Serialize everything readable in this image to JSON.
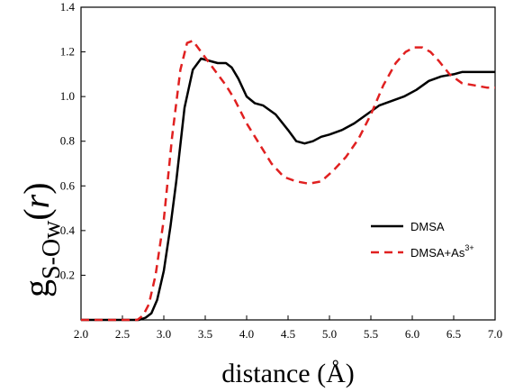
{
  "chart_data": {
    "type": "line",
    "xlabel": "distance (Å)",
    "ylabel": {
      "base": "g",
      "subscript": "S-Ow",
      "paren_open": "(",
      "arg": "r",
      "paren_close": ")"
    },
    "xlim": [
      2.0,
      7.0
    ],
    "ylim": [
      0.0,
      1.4
    ],
    "xticks": [
      "2.0",
      "2.5",
      "3.0",
      "3.5",
      "4.0",
      "4.5",
      "5.0",
      "5.5",
      "6.0",
      "6.5",
      "7.0"
    ],
    "yticks": [
      "0.2",
      "0.4",
      "0.6",
      "0.8",
      "1.0",
      "1.2",
      "1.4"
    ],
    "legend_position": "right",
    "series": [
      {
        "name": "DMSA",
        "legend_label": {
          "base": "DMSA",
          "sup": ""
        },
        "color": "#000000",
        "dash": "solid",
        "x": [
          2.0,
          2.7,
          2.78,
          2.85,
          2.92,
          3.0,
          3.08,
          3.15,
          3.25,
          3.35,
          3.45,
          3.55,
          3.65,
          3.75,
          3.82,
          3.9,
          4.0,
          4.1,
          4.2,
          4.35,
          4.5,
          4.6,
          4.7,
          4.8,
          4.9,
          5.0,
          5.15,
          5.3,
          5.45,
          5.6,
          5.75,
          5.9,
          6.05,
          6.2,
          6.35,
          6.5,
          6.6,
          6.75,
          6.9,
          7.0
        ],
        "y": [
          0.0,
          0.0,
          0.01,
          0.03,
          0.09,
          0.22,
          0.42,
          0.62,
          0.95,
          1.12,
          1.17,
          1.16,
          1.15,
          1.15,
          1.13,
          1.08,
          1.0,
          0.97,
          0.96,
          0.92,
          0.85,
          0.8,
          0.79,
          0.8,
          0.82,
          0.83,
          0.85,
          0.88,
          0.92,
          0.96,
          0.98,
          1.0,
          1.03,
          1.07,
          1.09,
          1.1,
          1.11,
          1.11,
          1.11,
          1.11
        ]
      },
      {
        "name": "DMSA+As3+",
        "legend_label": {
          "base": "DMSA+As",
          "sup": "3+"
        },
        "color": "#e02020",
        "dash": "dashed",
        "x": [
          2.0,
          2.68,
          2.75,
          2.82,
          2.9,
          3.0,
          3.1,
          3.2,
          3.28,
          3.35,
          3.45,
          3.55,
          3.65,
          3.75,
          3.85,
          4.0,
          4.15,
          4.3,
          4.45,
          4.6,
          4.75,
          4.9,
          5.05,
          5.2,
          5.35,
          5.5,
          5.65,
          5.8,
          5.92,
          6.02,
          6.12,
          6.22,
          6.32,
          6.45,
          6.6,
          6.75,
          6.9,
          7.0
        ],
        "y": [
          0.0,
          0.0,
          0.02,
          0.07,
          0.2,
          0.45,
          0.82,
          1.12,
          1.24,
          1.25,
          1.2,
          1.15,
          1.1,
          1.05,
          0.99,
          0.88,
          0.79,
          0.7,
          0.64,
          0.62,
          0.61,
          0.62,
          0.67,
          0.73,
          0.81,
          0.92,
          1.05,
          1.15,
          1.2,
          1.22,
          1.22,
          1.2,
          1.16,
          1.1,
          1.06,
          1.05,
          1.04,
          1.04
        ]
      }
    ]
  }
}
